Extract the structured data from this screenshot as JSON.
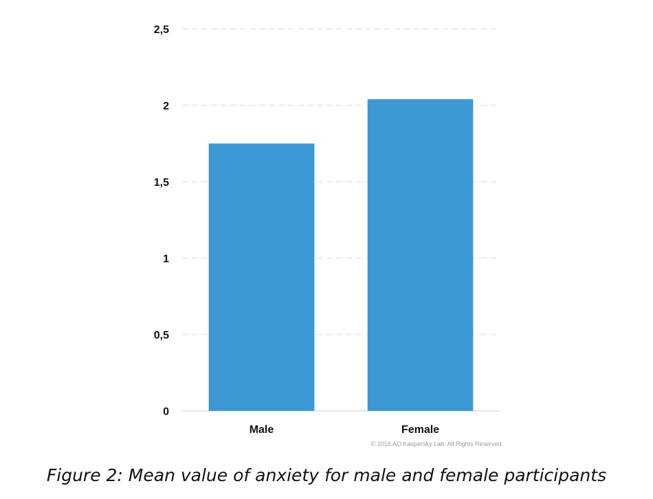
{
  "chart_data": {
    "type": "bar",
    "categories": [
      "Male",
      "Female"
    ],
    "values": [
      1.75,
      2.04
    ],
    "title": "",
    "xlabel": "",
    "ylabel": "",
    "ylim": [
      0,
      2.5
    ],
    "yticks": [
      0,
      0.5,
      1,
      1.5,
      2,
      2.5
    ],
    "ytick_labels": [
      "0",
      "0,5",
      "1",
      "1,5",
      "2",
      "2,5"
    ],
    "grid": true,
    "legend": "none",
    "bar_color": "#3b98d4",
    "grid_color": "#d9d9d9"
  },
  "copyright": "© 2016 AO Kaspersky Lab. All Rights Reserved.",
  "caption": "Figure 2: Mean value of anxiety for male and female participants"
}
